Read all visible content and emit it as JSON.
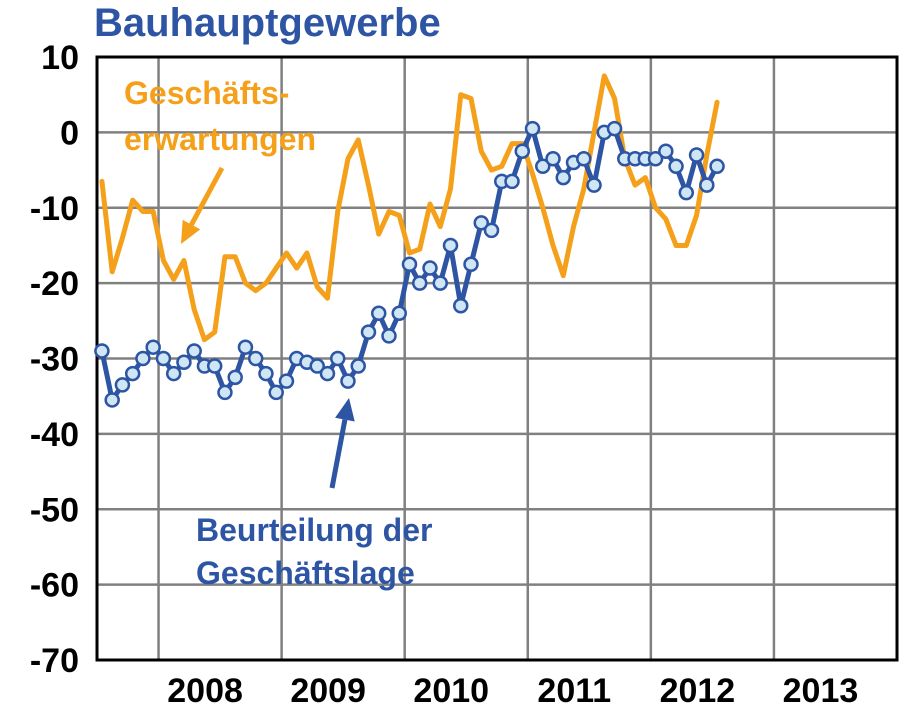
{
  "colors": {
    "expectations": "#f5a01a",
    "situation": "#2e55a4",
    "marker_fill": "#cfe6f5",
    "grid": "#808080",
    "axis": "#000000"
  },
  "chart_data": {
    "type": "line",
    "title": "Bauhauptgewerbe",
    "xlabel": "",
    "ylabel": "",
    "ylim": [
      -70,
      10
    ],
    "yticks": [
      10,
      0,
      -10,
      -20,
      -30,
      -40,
      -50,
      -60,
      -70
    ],
    "yticklabels": [
      "10",
      "0",
      "-10",
      "-20",
      "-30",
      "-40",
      "-50",
      "-60",
      "-70"
    ],
    "xlim": [
      2007.5,
      2014.0
    ],
    "xticklabels": [
      "2008",
      "2009",
      "2010",
      "2011",
      "2012",
      "2013"
    ],
    "grid": true,
    "series": [
      {
        "name": "Geschäfts-erwartungen",
        "label_lines": [
          "Geschäfts-",
          "erwartungen"
        ],
        "x_start": 2007.54,
        "x_step": 0.0833,
        "values": [
          -6.5,
          -18.5,
          -14,
          -9,
          -10.5,
          -10.5,
          -17,
          -19.5,
          -17,
          -23.5,
          -27.5,
          -26.5,
          -16.5,
          -16.5,
          -20,
          -21,
          -20,
          -18,
          -16,
          -18,
          -16,
          -20.5,
          -22,
          -10.5,
          -3.5,
          -1,
          -7,
          -13.5,
          -10.5,
          -11,
          -16,
          -15.5,
          -9.5,
          -12.5,
          -7.5,
          5,
          4.5,
          -2.5,
          -5,
          -4.5,
          -1.5,
          -1.5,
          -5.5,
          -10,
          -15,
          -19,
          -12.5,
          -7.5,
          0,
          7.5,
          4.5,
          -3.5,
          -7,
          -6,
          -10,
          -11.5,
          -15,
          -15,
          -11,
          -3,
          4
        ]
      },
      {
        "name": "Beurteilung der Geschäftslage",
        "label_lines": [
          "Beurteilung der",
          "Geschäftslage"
        ],
        "x_start": 2007.54,
        "x_step": 0.0833,
        "values": [
          -29,
          -35.5,
          -33.5,
          -32,
          -30,
          -28.5,
          -30,
          -32,
          -30.5,
          -29,
          -31,
          -31,
          -34.5,
          -32.5,
          -28.5,
          -30,
          -32,
          -34.5,
          -33,
          -30,
          -30.5,
          -31,
          -32,
          -30,
          -33,
          -31,
          -26.5,
          -24,
          -27,
          -24,
          -17.5,
          -20,
          -18,
          -20,
          -15,
          -23,
          -17.5,
          -12,
          -13,
          -6.5,
          -6.5,
          -2.5,
          0.5,
          -4.5,
          -3.5,
          -6,
          -4,
          -3.5,
          -7,
          0,
          0.5,
          -3.5,
          -3.5,
          -3.5,
          -3.5,
          -2.5,
          -4.5,
          -8,
          -3,
          -7,
          -4.5
        ]
      }
    ]
  }
}
